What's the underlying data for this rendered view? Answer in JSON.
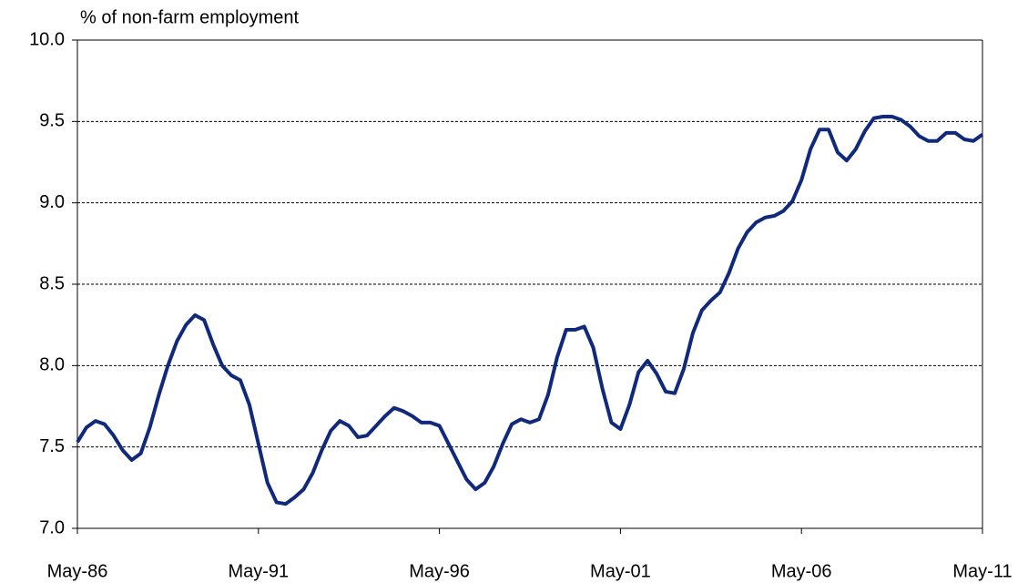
{
  "chart_data": {
    "type": "line",
    "y_axis_label": "% of non-farm employment",
    "categories": [
      "May-86",
      null,
      null,
      null,
      null,
      null,
      null,
      null,
      null,
      null,
      null,
      null,
      null,
      null,
      null,
      null,
      null,
      null,
      null,
      null,
      "May-91",
      null,
      null,
      null,
      null,
      null,
      null,
      null,
      null,
      null,
      null,
      null,
      null,
      null,
      null,
      null,
      null,
      null,
      null,
      null,
      "May-96",
      null,
      null,
      null,
      null,
      null,
      null,
      null,
      null,
      null,
      null,
      null,
      null,
      null,
      null,
      null,
      null,
      null,
      null,
      null,
      "May-01",
      null,
      null,
      null,
      null,
      null,
      null,
      null,
      null,
      null,
      null,
      null,
      null,
      null,
      null,
      null,
      null,
      null,
      null,
      null,
      "May-06",
      null,
      null,
      null,
      null,
      null,
      null,
      null,
      null,
      null,
      null,
      null,
      null,
      null,
      null,
      null,
      null,
      null,
      null,
      null,
      "May-11"
    ],
    "series": [
      {
        "color": "#10297a",
        "values": [
          7.53,
          7.62,
          7.66,
          7.64,
          7.57,
          7.48,
          7.42,
          7.46,
          7.62,
          7.82,
          8.0,
          8.15,
          8.25,
          8.31,
          8.28,
          8.13,
          8.0,
          7.94,
          7.91,
          7.76,
          7.52,
          7.28,
          7.16,
          7.15,
          7.19,
          7.24,
          7.34,
          7.48,
          7.6,
          7.66,
          7.63,
          7.56,
          7.57,
          7.63,
          7.69,
          7.74,
          7.72,
          7.69,
          7.65,
          7.65,
          7.63,
          7.52,
          7.41,
          7.3,
          7.24,
          7.28,
          7.38,
          7.52,
          7.64,
          7.67,
          7.65,
          7.67,
          7.82,
          8.05,
          8.22,
          8.22,
          8.24,
          8.11,
          7.86,
          7.65,
          7.61,
          7.76,
          7.96,
          8.03,
          7.95,
          7.84,
          7.83,
          7.98,
          8.2,
          8.34,
          8.4,
          8.45,
          8.57,
          8.72,
          8.82,
          8.88,
          8.91,
          8.92,
          8.95,
          9.01,
          9.14,
          9.33,
          9.45,
          9.45,
          9.31,
          9.26,
          9.33,
          9.44,
          9.52,
          9.53,
          9.53,
          9.51,
          9.47,
          9.41,
          9.38,
          9.38,
          9.43,
          9.43,
          9.39,
          9.38,
          9.42
        ]
      }
    ],
    "ylim": [
      7,
      10
    ],
    "yticks": [
      {
        "value": 7,
        "label": "7.0"
      },
      {
        "value": 7.5,
        "label": "7.5"
      },
      {
        "value": 8,
        "label": "8.0"
      },
      {
        "value": 8.5,
        "label": "8.5"
      },
      {
        "value": 9,
        "label": "9.0"
      },
      {
        "value": 9.5,
        "label": "9.5"
      },
      {
        "value": 10,
        "label": "10.0"
      }
    ],
    "grid": true
  }
}
